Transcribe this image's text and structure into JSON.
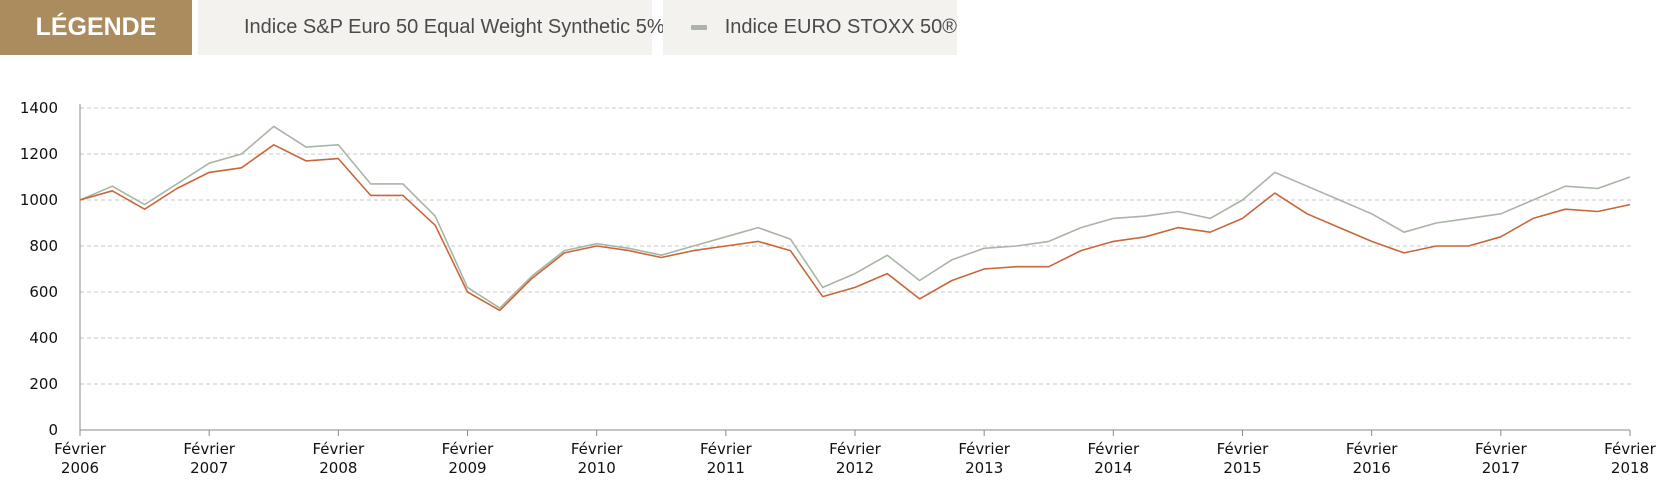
{
  "legend": {
    "title": "LÉGENDE",
    "title_bg": "#ab8c5f",
    "items": [
      {
        "label": "Indice S&P Euro 50 Equal Weight Synthetic 5%",
        "color": "#c8673a"
      },
      {
        "label": "Indice EURO STOXX 50®",
        "color": "#a9b5a6"
      }
    ]
  },
  "chart_data": {
    "type": "line",
    "title": "",
    "xlabel": "",
    "ylabel": "",
    "ylim": [
      0,
      1400
    ],
    "yticks": [
      0,
      200,
      400,
      600,
      800,
      1000,
      1200,
      1400
    ],
    "grid": "horizontal dashed",
    "xticks": [
      {
        "month": "Février",
        "year": "2006"
      },
      {
        "month": "Février",
        "year": "2007"
      },
      {
        "month": "Février",
        "year": "2008"
      },
      {
        "month": "Février",
        "year": "2009"
      },
      {
        "month": "Février",
        "year": "2010"
      },
      {
        "month": "Février",
        "year": "2011"
      },
      {
        "month": "Février",
        "year": "2012"
      },
      {
        "month": "Février",
        "year": "2013"
      },
      {
        "month": "Février",
        "year": "2014"
      },
      {
        "month": "Février",
        "year": "2015"
      },
      {
        "month": "Février",
        "year": "2016"
      },
      {
        "month": "Février",
        "year": "2017"
      },
      {
        "month": "Février",
        "year": "2018"
      }
    ],
    "x": [
      2006.0,
      2006.25,
      2006.5,
      2006.75,
      2007.0,
      2007.25,
      2007.5,
      2007.75,
      2008.0,
      2008.25,
      2008.5,
      2008.75,
      2009.0,
      2009.25,
      2009.5,
      2009.75,
      2010.0,
      2010.25,
      2010.5,
      2010.75,
      2011.0,
      2011.25,
      2011.5,
      2011.75,
      2012.0,
      2012.25,
      2012.5,
      2012.75,
      2013.0,
      2013.25,
      2013.5,
      2013.75,
      2014.0,
      2014.25,
      2014.5,
      2014.75,
      2015.0,
      2015.25,
      2015.5,
      2015.75,
      2016.0,
      2016.25,
      2016.5,
      2016.75,
      2017.0,
      2017.25,
      2017.5,
      2017.75,
      2018.0
    ],
    "series": [
      {
        "name": "Indice S&P Euro 50 Equal Weight Synthetic 5%",
        "color": "#c8673a",
        "values": [
          1000,
          1040,
          960,
          1050,
          1120,
          1140,
          1240,
          1170,
          1180,
          1020,
          1020,
          890,
          600,
          520,
          660,
          770,
          800,
          780,
          750,
          780,
          800,
          820,
          780,
          580,
          620,
          680,
          570,
          650,
          700,
          710,
          710,
          780,
          820,
          840,
          880,
          860,
          920,
          1030,
          940,
          880,
          820,
          770,
          800,
          800,
          840,
          920,
          960,
          950,
          980
        ]
      },
      {
        "name": "Indice EURO STOXX 50®",
        "color": "#a9b5a6",
        "values": [
          1000,
          1060,
          980,
          1070,
          1160,
          1200,
          1320,
          1230,
          1240,
          1070,
          1070,
          930,
          620,
          530,
          670,
          780,
          810,
          790,
          760,
          800,
          840,
          880,
          830,
          620,
          680,
          760,
          650,
          740,
          790,
          800,
          820,
          880,
          920,
          930,
          950,
          920,
          1000,
          1120,
          1060,
          1000,
          940,
          860,
          900,
          920,
          940,
          1000,
          1060,
          1050,
          1100
        ]
      }
    ]
  }
}
